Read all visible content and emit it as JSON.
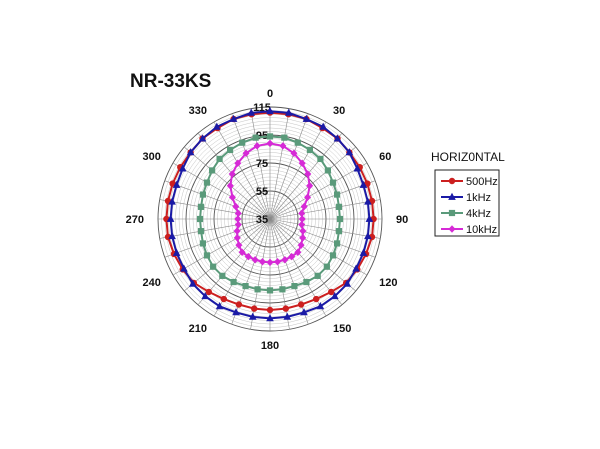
{
  "chart_data": {
    "type": "polar-line",
    "title": "NR-33KS",
    "legend_title": "HORIZ0NTAL",
    "legend_position": "right",
    "radial_ticks": [
      "115",
      "95",
      "75",
      "55",
      "35"
    ],
    "r_range": [
      35,
      115
    ],
    "rings": [
      35,
      55,
      75,
      95,
      115
    ],
    "angle_labels": [
      "0",
      "30",
      "60",
      "90",
      "120",
      "150",
      "180",
      "210",
      "240",
      "270",
      "300",
      "330"
    ],
    "angles_deg": [
      0,
      10,
      20,
      30,
      40,
      50,
      60,
      70,
      80,
      90,
      100,
      110,
      120,
      130,
      140,
      150,
      160,
      170,
      180,
      190,
      200,
      210,
      220,
      230,
      240,
      250,
      260,
      270,
      280,
      290,
      300,
      310,
      320,
      330,
      340,
      350
    ],
    "series": [
      {
        "name": "500Hz",
        "color": "#cc1f1f",
        "marker": "circle",
        "values": [
          111,
          111,
          111,
          110,
          110,
          109,
          109,
          109,
          109,
          109,
          109,
          108,
          107,
          106,
          103,
          101,
          100,
          100,
          100,
          100,
          100,
          101,
          103,
          106,
          107,
          108,
          109,
          109,
          109,
          109,
          109,
          109,
          110,
          110,
          111,
          111
        ]
      },
      {
        "name": "1kHz",
        "color": "#1a1aa6",
        "marker": "triangle",
        "values": [
          112,
          112,
          111,
          111,
          110,
          109,
          107,
          106,
          106,
          106,
          106,
          106,
          106,
          107,
          107,
          107,
          106,
          106,
          106,
          106,
          106,
          107,
          107,
          107,
          106,
          106,
          106,
          106,
          106,
          106,
          107,
          109,
          110,
          111,
          111,
          112
        ]
      },
      {
        "name": "4kHz",
        "color": "#5a9a7a",
        "marker": "square",
        "values": [
          94,
          94,
          93,
          92,
          91,
          89,
          87,
          86,
          85,
          85,
          85,
          86,
          87,
          88,
          88,
          87,
          86,
          86,
          86,
          86,
          86,
          87,
          88,
          88,
          87,
          86,
          85,
          85,
          85,
          86,
          87,
          89,
          91,
          92,
          93,
          94
        ]
      },
      {
        "name": "10kHz",
        "color": "#d62ad6",
        "marker": "diamond",
        "values": [
          89,
          88,
          85,
          81,
          77,
          72,
          66,
          61,
          58,
          58,
          58,
          60,
          62,
          64,
          66,
          66,
          66,
          66,
          66,
          66,
          66,
          66,
          66,
          64,
          62,
          60,
          58,
          58,
          58,
          61,
          66,
          72,
          77,
          81,
          85,
          88
        ]
      }
    ]
  }
}
